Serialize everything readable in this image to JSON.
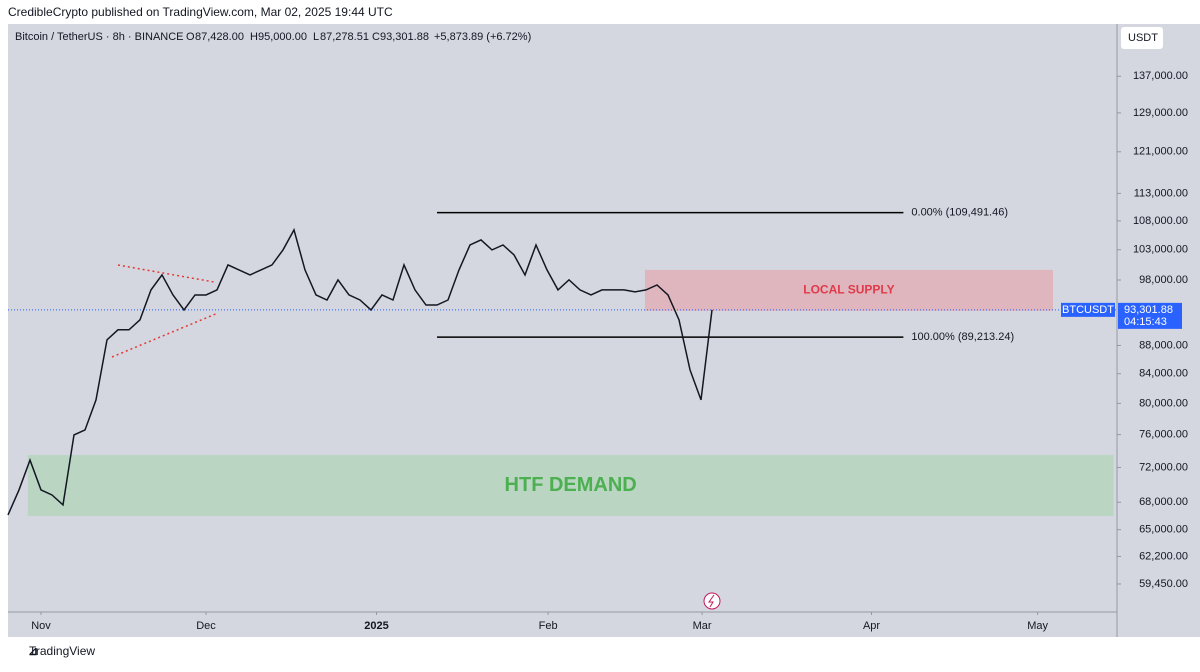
{
  "header": {
    "publisher": "CredibleCrypto published on TradingView.com, Mar 02, 2025 19:44 UTC"
  },
  "legend": {
    "symbol": "Bitcoin / TetherUS · 8h · BINANCE",
    "open_key": "O",
    "open": "87,428.00",
    "high_key": "H",
    "high": "95,000.00",
    "low_key": "L",
    "low": "87,278.51",
    "close_key": "C",
    "close": "93,301.88",
    "change": "+5,873.89 (+6.72%)"
  },
  "currency": "USDT",
  "footer": {
    "brand": "TradingView"
  },
  "chart_data": {
    "type": "line",
    "log_scale": true,
    "color": "#131722",
    "categories": [
      null,
      null,
      null,
      null,
      null,
      null,
      null,
      null,
      null,
      null,
      null,
      null,
      null,
      null,
      null,
      null,
      null,
      null,
      null,
      null,
      null,
      null,
      null,
      null,
      null,
      null,
      null,
      null,
      null,
      null,
      null,
      null,
      null,
      null,
      null,
      null,
      null,
      null,
      null,
      null,
      null,
      null,
      null,
      null,
      null,
      null,
      null,
      null,
      null,
      null,
      null,
      null,
      null,
      null,
      null,
      null,
      null,
      null,
      null,
      null,
      null,
      null,
      null,
      null,
      null
    ],
    "values": [
      66590,
      69390,
      72880,
      69390,
      68820,
      67700,
      75960,
      76580,
      80460,
      88810,
      90300,
      90300,
      91790,
      96420,
      98820,
      95620,
      93290,
      95620,
      95620,
      96420,
      100460,
      99640,
      98820,
      99640,
      100460,
      102970,
      106420,
      99640,
      95620,
      94830,
      98020,
      95620,
      94830,
      93290,
      95620,
      94830,
      100460,
      96420,
      94050,
      94050,
      94830,
      99640,
      103810,
      104680,
      102970,
      103810,
      102140,
      98820,
      103810,
      99640,
      96420,
      98020,
      96420,
      95620,
      96420,
      96420,
      96420,
      96110,
      96420,
      97200,
      95620,
      91790,
      84540,
      80460,
      93300
    ],
    "xlim": [
      0,
      100.8
    ],
    "xticks": [
      {
        "value": 3,
        "label": "Nov"
      },
      {
        "value": 18,
        "label": "Dec"
      },
      {
        "value": 33.5,
        "label": "2025"
      },
      {
        "value": 49.1,
        "label": "Feb"
      },
      {
        "value": 63.1,
        "label": "Mar"
      },
      {
        "value": 78.5,
        "label": "Apr"
      },
      {
        "value": 93.6,
        "label": "May"
      }
    ],
    "ylim": [
      56770,
      149300
    ],
    "yticks": [
      {
        "value": 59450,
        "label": "59,450.00"
      },
      {
        "value": 62200,
        "label": "62,200.00"
      },
      {
        "value": 65000,
        "label": "65,000.00"
      },
      {
        "value": 68000,
        "label": "68,000.00"
      },
      {
        "value": 72000,
        "label": "72,000.00"
      },
      {
        "value": 76000,
        "label": "76,000.00"
      },
      {
        "value": 80000,
        "label": "80,000.00"
      },
      {
        "value": 84000,
        "label": "84,000.00"
      },
      {
        "value": 88000,
        "label": "88,000.00"
      },
      {
        "value": 98000,
        "label": "98,000.00"
      },
      {
        "value": 103000,
        "label": "103,000.00"
      },
      {
        "value": 108000,
        "label": "108,000.00"
      },
      {
        "value": 113000,
        "label": "113,000.00"
      },
      {
        "value": 121000,
        "label": "121,000.00"
      },
      {
        "value": 129000,
        "label": "129,000.00"
      },
      {
        "value": 137000,
        "label": "137,000.00"
      }
    ],
    "fib_levels": [
      {
        "value": 109491.46,
        "label": "0.00% (109,491.46)",
        "x_range": [
          39,
          81.4
        ]
      },
      {
        "value": 89213.24,
        "label": "100.00% (89,213.24)",
        "x_range": [
          39,
          81.4
        ]
      }
    ],
    "zones": [
      {
        "label": "LOCAL SUPPLY",
        "range": [
          93150,
          99640
        ],
        "x_range": [
          57.9,
          95
        ],
        "color": "#e8a0a8",
        "text_color": "#e03a4a"
      },
      {
        "label": "HTF DEMAND",
        "range": [
          66480,
          73490
        ],
        "x_range": [
          1.8,
          100.5
        ],
        "color": "#a8d5b0",
        "text_color": "#4caf50"
      }
    ],
    "last_price": {
      "value": 93301.88,
      "label": "93,301.88",
      "symbol": "BTCUSDT",
      "countdown": "04:15:43"
    }
  }
}
